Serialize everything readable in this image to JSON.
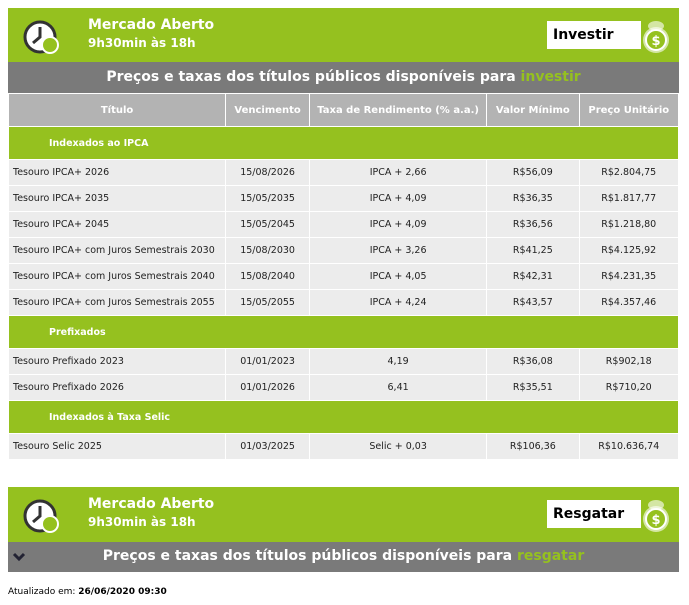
{
  "panels": [
    {
      "title": "Mercado Aberto",
      "hours": "9h30min às 18h",
      "button": "Investir",
      "banner": "Preços e taxas dos títulos públicos disponíveis para",
      "banner_highlight": "investir"
    },
    {
      "title": "Mercado Aberto",
      "hours": "9h30min às 18h",
      "button": "Resgatar",
      "banner": "Preços e taxas dos títulos públicos disponíveis para",
      "banner_highlight": "resgatar"
    }
  ],
  "table": {
    "headers": [
      "Título",
      "Vencimento",
      "Taxa de Rendimento (% a.a.)",
      "Valor Mínimo",
      "Preço Unitário"
    ],
    "sections": [
      {
        "title": "Indexados ao IPCA",
        "rows": [
          [
            "Tesouro IPCA+ 2026",
            "15/08/2026",
            "IPCA + 2,66",
            "R$56,09",
            "R$2.804,75"
          ],
          [
            "Tesouro IPCA+ 2035",
            "15/05/2035",
            "IPCA + 4,09",
            "R$36,35",
            "R$1.817,77"
          ],
          [
            "Tesouro IPCA+ 2045",
            "15/05/2045",
            "IPCA + 4,09",
            "R$36,56",
            "R$1.218,80"
          ],
          [
            "Tesouro IPCA+ com Juros Semestrais 2030",
            "15/08/2030",
            "IPCA + 3,26",
            "R$41,25",
            "R$4.125,92"
          ],
          [
            "Tesouro IPCA+ com Juros Semestrais 2040",
            "15/08/2040",
            "IPCA + 4,05",
            "R$42,31",
            "R$4.231,35"
          ],
          [
            "Tesouro IPCA+ com Juros Semestrais 2055",
            "15/05/2055",
            "IPCA + 4,24",
            "R$43,57",
            "R$4.357,46"
          ]
        ]
      },
      {
        "title": "Prefixados",
        "rows": [
          [
            "Tesouro Prefixado 2023",
            "01/01/2023",
            "4,19",
            "R$36,08",
            "R$902,18"
          ],
          [
            "Tesouro Prefixado 2026",
            "01/01/2026",
            "6,41",
            "R$35,51",
            "R$710,20"
          ]
        ]
      },
      {
        "title": "Indexados à Taxa Selic",
        "rows": [
          [
            "Tesouro Selic 2025",
            "01/03/2025",
            "Selic + 0,03",
            "R$106,36",
            "R$10.636,74"
          ]
        ]
      }
    ]
  },
  "footer": {
    "label": "Atualizado em:",
    "value": "26/06/2020 09:30"
  }
}
